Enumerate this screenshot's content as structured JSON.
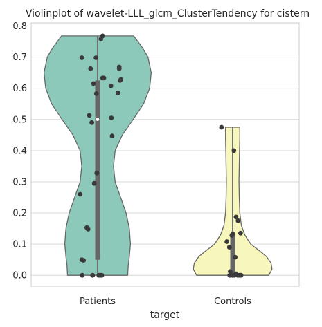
{
  "chart_data": {
    "type": "violin",
    "title": "Violinplot of wavelet-LLL_glcm_ClusterTendency for cistern",
    "xlabel": "target",
    "ylabel": "",
    "categories": [
      "Patients",
      "Controls"
    ],
    "ylim": [
      -0.035,
      0.81
    ],
    "yticks": [
      0.0,
      0.1,
      0.2,
      0.3,
      0.4,
      0.5,
      0.6,
      0.7,
      0.8
    ],
    "ytick_labels": [
      "0.0",
      "0.1",
      "0.2",
      "0.3",
      "0.4",
      "0.5",
      "0.6",
      "0.7",
      "0.8"
    ],
    "grid": true,
    "series": [
      {
        "category": "Patients",
        "color": "#8dc9bb",
        "range": [
          0.0,
          0.768
        ],
        "iqr": [
          0.05,
          0.625
        ],
        "median": 0.5,
        "density": [
          [
            0.0,
            0.55
          ],
          [
            0.03,
            0.56
          ],
          [
            0.06,
            0.58
          ],
          [
            0.1,
            0.6
          ],
          [
            0.15,
            0.58
          ],
          [
            0.2,
            0.52
          ],
          [
            0.25,
            0.42
          ],
          [
            0.3,
            0.32
          ],
          [
            0.35,
            0.29
          ],
          [
            0.4,
            0.32
          ],
          [
            0.45,
            0.45
          ],
          [
            0.5,
            0.65
          ],
          [
            0.55,
            0.84
          ],
          [
            0.6,
            0.95
          ],
          [
            0.65,
            0.98
          ],
          [
            0.7,
            0.92
          ],
          [
            0.73,
            0.82
          ],
          [
            0.768,
            0.66
          ]
        ],
        "points": [
          0.768,
          0.758,
          0.698,
          0.698,
          0.663,
          0.668,
          0.663,
          0.633,
          0.633,
          0.628,
          0.625,
          0.615,
          0.608,
          0.585,
          0.583,
          0.513,
          0.505,
          0.49,
          0.447,
          0.328,
          0.295,
          0.26,
          0.153,
          0.148,
          0.05,
          0.048,
          0.0,
          0.0,
          0.0,
          0.0,
          0.0
        ],
        "jitter": [
          0.12,
          0.08,
          -0.38,
          -0.04,
          -0.17,
          0.52,
          0.52,
          0.15,
          0.12,
          0.56,
          0.54,
          -0.1,
          0.32,
          0.49,
          -0.03,
          -0.2,
          0.33,
          -0.14,
          0.35,
          -0.02,
          -0.08,
          -0.42,
          -0.26,
          -0.23,
          -0.38,
          -0.34,
          -0.37,
          -0.12,
          0.03,
          0.06,
          0.1
        ]
      },
      {
        "category": "Controls",
        "color": "#f7f7bd",
        "range": [
          0.0,
          0.475
        ],
        "iqr": [
          0.0,
          0.13
        ],
        "median": 0.0,
        "density": [
          [
            0.0,
            0.66
          ],
          [
            0.02,
            0.72
          ],
          [
            0.04,
            0.7
          ],
          [
            0.06,
            0.62
          ],
          [
            0.08,
            0.48
          ],
          [
            0.1,
            0.33
          ],
          [
            0.13,
            0.22
          ],
          [
            0.16,
            0.16
          ],
          [
            0.2,
            0.13
          ],
          [
            0.25,
            0.12
          ],
          [
            0.3,
            0.115
          ],
          [
            0.35,
            0.12
          ],
          [
            0.4,
            0.125
          ],
          [
            0.44,
            0.13
          ],
          [
            0.475,
            0.13
          ]
        ],
        "points": [
          0.475,
          0.4,
          0.187,
          0.175,
          0.135,
          0.133,
          0.128,
          0.108,
          0.09,
          0.058,
          0.012,
          0.005,
          0.0,
          0.0,
          0.0,
          0.0,
          0.0,
          0.0
        ],
        "jitter": [
          -0.27,
          0.03,
          0.08,
          0.13,
          0.19,
          0.0,
          -0.02,
          -0.14,
          -0.08,
          0.06,
          -0.06,
          0.08,
          -0.07,
          -0.01,
          0.04,
          0.12,
          0.16,
          0.2
        ]
      }
    ]
  }
}
